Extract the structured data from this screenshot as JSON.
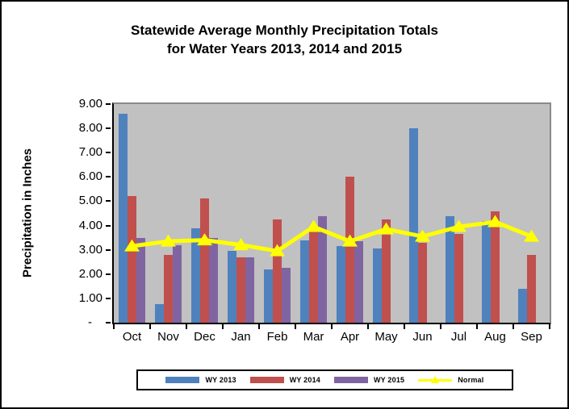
{
  "title": {
    "line1": "Statewide Average Monthly Precipitation Totals",
    "line2": "for Water Years 2013, 2014 and 2015"
  },
  "y_axis": {
    "label": "Precipitation in Inches"
  },
  "chart_data": {
    "type": "bar",
    "title": "Statewide Average Monthly Precipitation Totals for Water Years 2013, 2014 and 2015",
    "xlabel": "",
    "ylabel": "Precipitation in Inches",
    "ylim": [
      0,
      9
    ],
    "ytick_step": 1,
    "ytick_labels_bottom_to_top": [
      "-",
      "1.00",
      "2.00",
      "3.00",
      "4.00",
      "5.00",
      "6.00",
      "7.00",
      "8.00",
      "9.00"
    ],
    "grid": false,
    "plot_background": "#C1C1C1",
    "legend_position": "bottom",
    "categories": [
      "Oct",
      "Nov",
      "Dec",
      "Jan",
      "Feb",
      "Mar",
      "Apr",
      "May",
      "Jun",
      "Jul",
      "Aug",
      "Sep"
    ],
    "series": [
      {
        "name": "WY 2013",
        "render": "bar",
        "color": "#4F81BD",
        "values": [
          8.6,
          0.75,
          3.9,
          2.95,
          2.2,
          3.4,
          3.15,
          3.05,
          8.0,
          4.4,
          4.2,
          1.4
        ]
      },
      {
        "name": "WY 2014",
        "render": "bar",
        "color": "#C0504D",
        "values": [
          5.2,
          2.8,
          5.1,
          2.7,
          4.25,
          3.75,
          6.0,
          4.25,
          3.3,
          3.65,
          4.6,
          2.8
        ]
      },
      {
        "name": "WY 2015",
        "render": "bar",
        "color": "#8064A2",
        "values": [
          3.5,
          3.2,
          3.5,
          2.7,
          2.25,
          4.4,
          3.35,
          null,
          null,
          null,
          null,
          null
        ]
      },
      {
        "name": "Normal",
        "render": "line",
        "color": "#FFFF00",
        "values": [
          3.15,
          3.35,
          3.4,
          3.2,
          2.95,
          3.95,
          3.35,
          3.85,
          3.55,
          3.95,
          4.15,
          3.55
        ]
      }
    ]
  }
}
